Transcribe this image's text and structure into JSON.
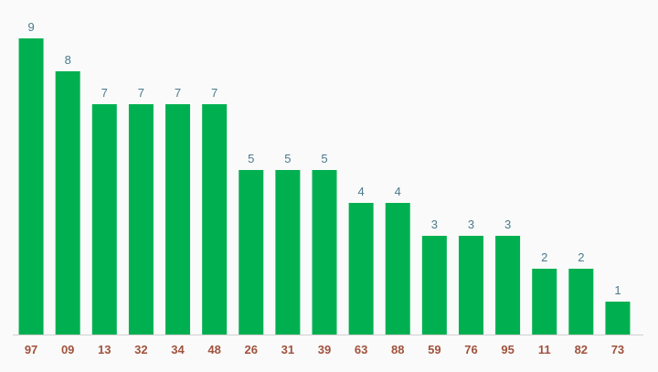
{
  "chart_data": {
    "type": "bar",
    "title": "",
    "xlabel": "",
    "ylabel": "",
    "categories": [
      "97",
      "09",
      "13",
      "32",
      "34",
      "48",
      "26",
      "31",
      "39",
      "63",
      "88",
      "59",
      "76",
      "95",
      "11",
      "82",
      "73"
    ],
    "values": [
      9,
      8,
      7,
      7,
      7,
      7,
      5,
      5,
      5,
      4,
      4,
      3,
      3,
      3,
      2,
      2,
      1
    ],
    "ylim": [
      0,
      9
    ],
    "grid": false,
    "data_labels": true,
    "colors": {
      "bar": "#00b050",
      "value_label": "#4a7a8c",
      "category_label": "#a0523d",
      "axis": "#d0d0d0",
      "background": "#fafafa"
    }
  }
}
